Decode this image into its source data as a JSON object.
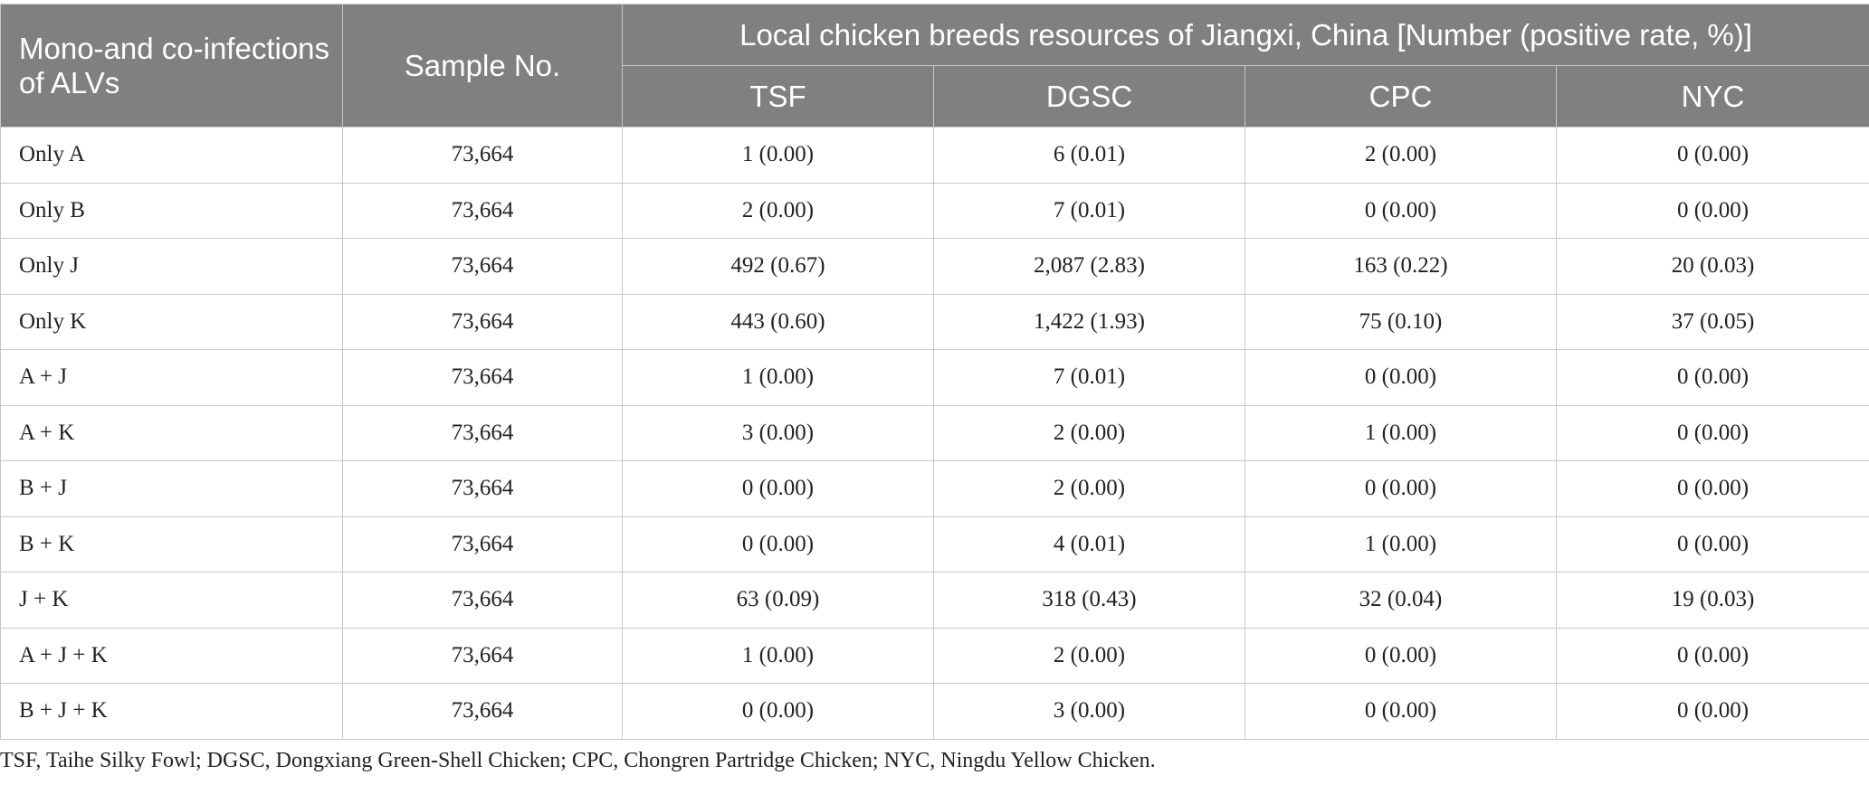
{
  "table": {
    "header": {
      "row_label": "Mono-and co-infections of ALVs",
      "sample_no": "Sample No.",
      "group": "Local chicken breeds resources of Jiangxi, China [Number (positive rate, %)]",
      "breeds": [
        "TSF",
        "DGSC",
        "CPC",
        "NYC"
      ]
    },
    "rows": [
      {
        "label": "Only A",
        "sample": "73,664",
        "values": [
          "1 (0.00)",
          "6 (0.01)",
          "2 (0.00)",
          "0 (0.00)"
        ]
      },
      {
        "label": "Only B",
        "sample": "73,664",
        "values": [
          "2 (0.00)",
          "7 (0.01)",
          "0 (0.00)",
          "0 (0.00)"
        ]
      },
      {
        "label": "Only J",
        "sample": "73,664",
        "values": [
          "492 (0.67)",
          "2,087 (2.83)",
          "163 (0.22)",
          "20 (0.03)"
        ]
      },
      {
        "label": "Only K",
        "sample": "73,664",
        "values": [
          "443 (0.60)",
          "1,422 (1.93)",
          "75 (0.10)",
          "37 (0.05)"
        ]
      },
      {
        "label": "A + J",
        "sample": "73,664",
        "values": [
          "1 (0.00)",
          "7 (0.01)",
          "0 (0.00)",
          "0 (0.00)"
        ]
      },
      {
        "label": "A + K",
        "sample": "73,664",
        "values": [
          "3 (0.00)",
          "2 (0.00)",
          "1 (0.00)",
          "0 (0.00)"
        ]
      },
      {
        "label": "B + J",
        "sample": "73,664",
        "values": [
          "0 (0.00)",
          "2 (0.00)",
          "0 (0.00)",
          "0 (0.00)"
        ]
      },
      {
        "label": "B + K",
        "sample": "73,664",
        "values": [
          "0 (0.00)",
          "4 (0.01)",
          "1 (0.00)",
          "0 (0.00)"
        ]
      },
      {
        "label": "J + K",
        "sample": "73,664",
        "values": [
          "63 (0.09)",
          "318 (0.43)",
          "32 (0.04)",
          "19 (0.03)"
        ]
      },
      {
        "label": "A + J + K",
        "sample": "73,664",
        "values": [
          "1 (0.00)",
          "2 (0.00)",
          "0 (0.00)",
          "0 (0.00)"
        ]
      },
      {
        "label": "B + J + K",
        "sample": "73,664",
        "values": [
          "0 (0.00)",
          "3 (0.00)",
          "0 (0.00)",
          "0 (0.00)"
        ]
      }
    ]
  },
  "footnote": "TSF, Taihe Silky Fowl; DGSC, Dongxiang Green-Shell Chicken; CPC, Chongren Partridge Chicken; NYC, Ningdu Yellow Chicken.",
  "colors": {
    "header_bg": "#808080",
    "header_text": "#ffffff",
    "grid": "#c8c8c8",
    "body_text": "#222222"
  }
}
